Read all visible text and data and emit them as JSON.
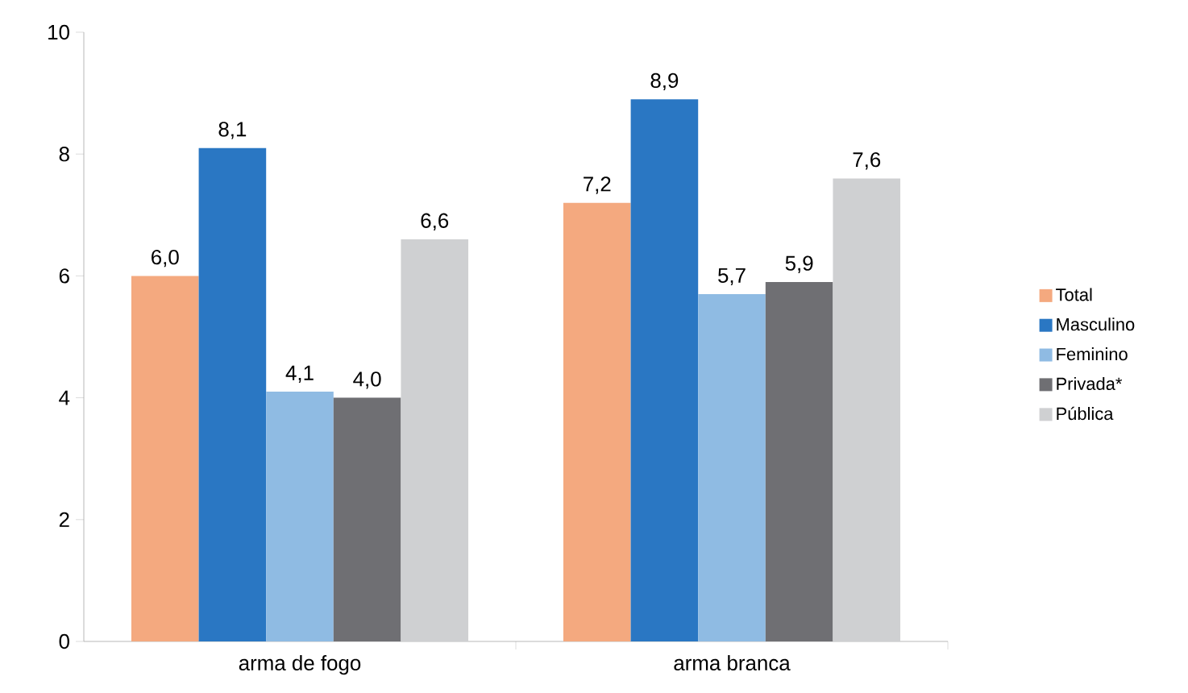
{
  "chart_data": {
    "type": "bar",
    "categories": [
      "arma de fogo",
      "arma branca"
    ],
    "series": [
      {
        "name": "Total",
        "color": "#f4a97f",
        "values": [
          6.0,
          7.2
        ],
        "value_labels": [
          "6,0",
          "7,2"
        ]
      },
      {
        "name": "Masculino",
        "color": "#2a77c3",
        "values": [
          8.1,
          8.9
        ],
        "value_labels": [
          "8,1",
          "8,9"
        ]
      },
      {
        "name": "Feminino",
        "color": "#8fbbe3",
        "values": [
          4.1,
          5.7
        ],
        "value_labels": [
          "4,1",
          "5,7"
        ]
      },
      {
        "name": "Privada*",
        "color": "#6f6f73",
        "values": [
          4.0,
          5.9
        ],
        "value_labels": [
          "4,0",
          "5,9"
        ]
      },
      {
        "name": "Pública",
        "color": "#cfd0d2",
        "values": [
          6.6,
          7.6
        ],
        "value_labels": [
          "6,6",
          "7,6"
        ]
      }
    ],
    "ylim": [
      0,
      10
    ],
    "yticks": [
      0,
      2,
      4,
      6,
      8,
      10
    ],
    "grid": false,
    "legend": "right"
  }
}
